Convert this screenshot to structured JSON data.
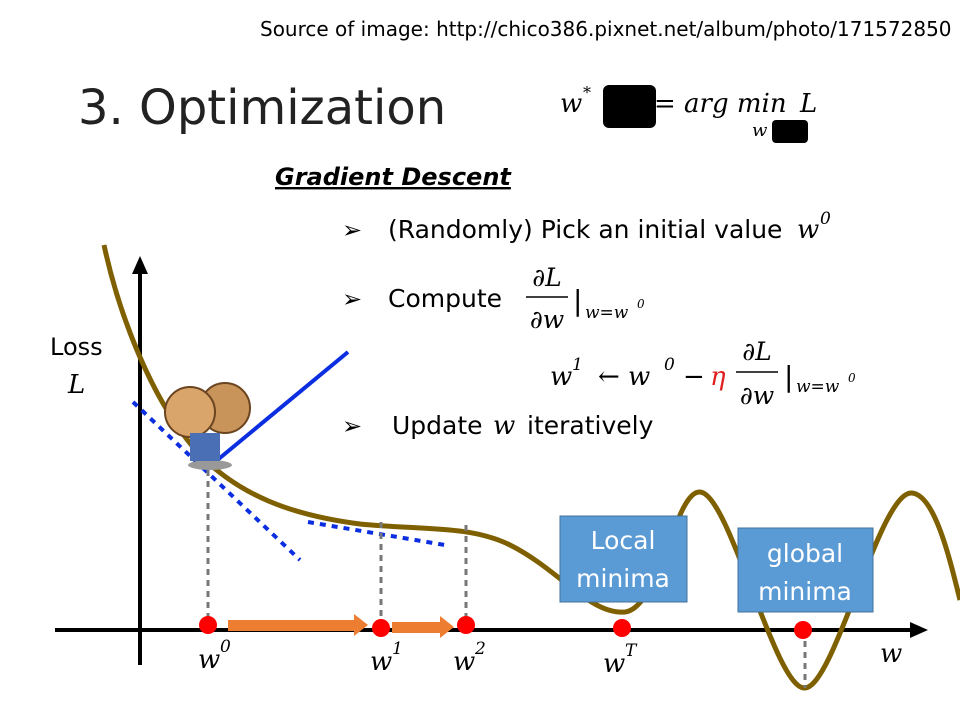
{
  "source": "Source of image: http://chico386.pixnet.net/album/photo/171572850",
  "title": "3. Optimization",
  "formula": {
    "w": "w",
    "star": "*",
    "eq": "= arg min",
    "under": "w",
    "L": "L"
  },
  "section": "Gradient Descent",
  "steps": [
    {
      "text": "(Randomly) Pick an initial value",
      "var": "w",
      "sup": "0"
    },
    {
      "text": "Compute",
      "num": "∂L",
      "den": "∂w",
      "eval": "|",
      "sub": "w=w",
      "subsup": "0"
    },
    {
      "text": "Update",
      "var": "w",
      "rest": "iteratively"
    }
  ],
  "update": {
    "w": "w",
    "sup1": "1",
    "arrow": "← w",
    "sup0": "0",
    "minus": "−",
    "eta": "η",
    "num": "∂L",
    "den": "∂w",
    "eval": "|",
    "sub": "w=w",
    "subsup": "0"
  },
  "plot": {
    "y_label": "Loss",
    "y_var": "L",
    "x_var": "w",
    "points": [
      {
        "var": "w",
        "sup": "0"
      },
      {
        "var": "w",
        "sup": "1"
      },
      {
        "var": "w",
        "sup": "2"
      },
      {
        "var": "w",
        "sup": "T"
      }
    ],
    "boxes": [
      {
        "line1": "Local",
        "line2": "minima"
      },
      {
        "line1": "global",
        "line2": "minima"
      }
    ]
  }
}
